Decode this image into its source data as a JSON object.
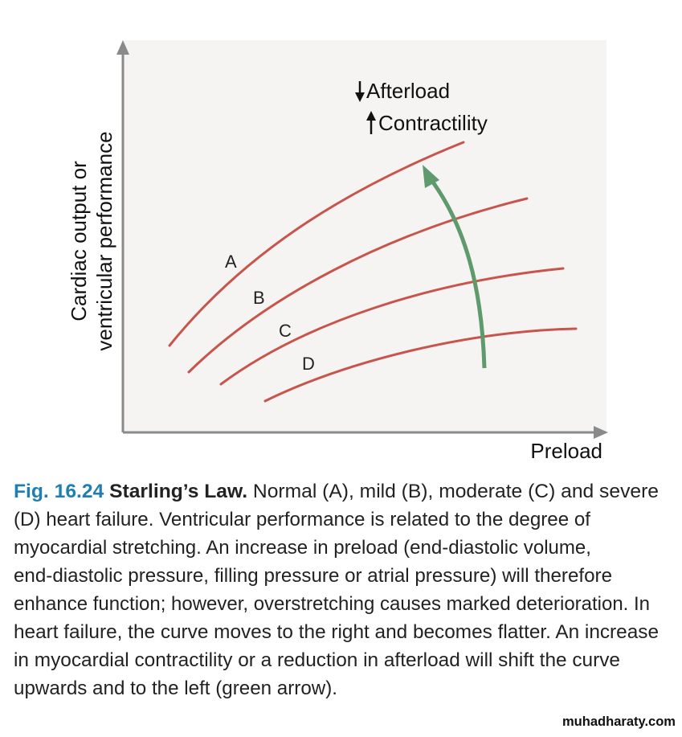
{
  "figure": {
    "annotation_afterload": "Afterload",
    "annotation_contractility": "Contractility",
    "y_axis_label_line1": "Cardiac output or",
    "y_axis_label_line2": "ventricular performance",
    "x_axis_label": "Preload",
    "curves": [
      {
        "label": "A",
        "meaning": "Normal"
      },
      {
        "label": "B",
        "meaning": "Mild heart failure"
      },
      {
        "label": "C",
        "meaning": "Moderate heart failure"
      },
      {
        "label": "D",
        "meaning": "Severe heart failure"
      }
    ],
    "colors": {
      "curve": "#c8554c",
      "arrow": "#5e9a6c",
      "plot_bg": "#f5f4f3",
      "axis": "#8a8a8a",
      "fig_number": "#1f7fb0"
    }
  },
  "caption": {
    "fig_number": "Fig. 16.24",
    "title": "Starling’s Law.",
    "line1_rest": "Normal (A), mild (B), moderate (C) and severe",
    "line2": "(D) heart failure. Ventricular performance is related to the degree of",
    "line3": "myocardial stretching. An increase in preload (end-diastolic volume,",
    "line4": "end-diastolic pressure, filling pressure or atrial pressure) will therefore",
    "line5": "enhance function; however, overstretching causes marked deterioration. In",
    "line6": "heart failure, the curve moves to the right and becomes flatter. An increase",
    "line7": "in myocardial contractility or a reduction in afterload will shift the curve",
    "line8": "upwards and to the left (green arrow)."
  },
  "watermark": "muhadharaty.com"
}
